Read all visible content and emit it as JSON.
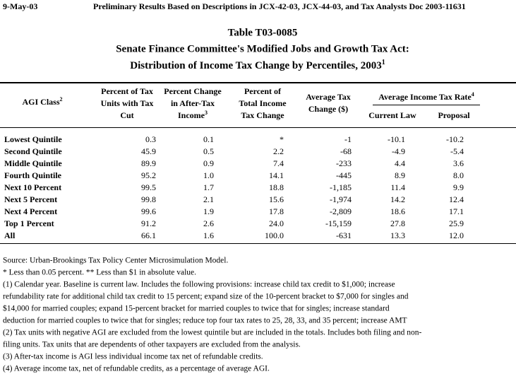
{
  "header": {
    "date": "9-May-03",
    "note": "Preliminary Results Based on Descriptions in JCX-42-03, JCX-44-03, and Tax Analysts Doc 2003-11631"
  },
  "title": {
    "lines": [
      "Table T03-0085",
      "Senate Finance Committee's Modified Jobs and Growth Tax Act:",
      "Distribution of Income Tax Change by Percentiles, 2003"
    ],
    "superscript": "1"
  },
  "table": {
    "columns": [
      {
        "lines": [
          "AGI Class"
        ],
        "superscript": "2"
      },
      {
        "lines": [
          "Percent of Tax",
          "Units with Tax",
          "Cut"
        ]
      },
      {
        "lines": [
          "Percent Change",
          "in After-Tax",
          "Income"
        ],
        "superscript": "3"
      },
      {
        "lines": [
          "Percent of",
          "Total Income",
          "Tax Change"
        ]
      },
      {
        "lines": [
          "Average Tax",
          "Change ($)"
        ]
      }
    ],
    "group": {
      "label": "Average Income Tax Rate",
      "superscript": "4",
      "columns": [
        "Current Law",
        "Proposal"
      ]
    },
    "rows": [
      {
        "label": "Lowest Quintile",
        "values": [
          "0.3",
          "0.1",
          "*",
          "-1",
          "-10.1",
          "-10.2"
        ]
      },
      {
        "label": "Second Quintile",
        "values": [
          "45.9",
          "0.5",
          "2.2",
          "-68",
          "-4.9",
          "-5.4"
        ]
      },
      {
        "label": "Middle Quintile",
        "values": [
          "89.9",
          "0.9",
          "7.4",
          "-233",
          "4.4",
          "3.6"
        ]
      },
      {
        "label": "Fourth Quintile",
        "values": [
          "95.2",
          "1.0",
          "14.1",
          "-445",
          "8.9",
          "8.0"
        ]
      },
      {
        "label": "Next 10 Percent",
        "values": [
          "99.5",
          "1.7",
          "18.8",
          "-1,185",
          "11.4",
          "9.9"
        ]
      },
      {
        "label": "Next 5 Percent",
        "values": [
          "99.8",
          "2.1",
          "15.6",
          "-1,974",
          "14.2",
          "12.4"
        ]
      },
      {
        "label": "Next 4 Percent",
        "values": [
          "99.6",
          "1.9",
          "17.8",
          "-2,809",
          "18.6",
          "17.1"
        ]
      },
      {
        "label": "Top 1 Percent",
        "values": [
          "91.2",
          "2.6",
          "24.0",
          "-15,159",
          "27.8",
          "25.9"
        ]
      },
      {
        "label": "All",
        "values": [
          "66.1",
          "1.6",
          "100.0",
          "-631",
          "13.3",
          "12.0"
        ]
      }
    ]
  },
  "footnotes": [
    "Source: Urban-Brookings Tax Policy Center Microsimulation Model.",
    "* Less than 0.05 percent.  ** Less than $1 in absolute value.",
    "(1) Calendar year. Baseline is current law. Includes the following provisions: increase child tax credit to $1,000; increase",
    "refundability rate for additional child tax credit to 15 percent; expand size of the 10-percent bracket to $7,000 for singles and",
    "$14,000 for married couples; expand 15-percent bracket for married couples to twice that for singles; increase standard",
    "deduction for married couples to twice that for singles; reduce top four tax rates to 25, 28, 33, and 35 percent; increase AMT",
    "(2) Tax units with negative AGI are excluded from the lowest quintile but are included in the totals. Includes both filing and non-",
    "filing units. Tax units that are dependents of other taxpayers are excluded from the analysis.",
    "(3) After-tax income is AGI less individual income tax net of refundable credits.",
    "(4) Average income tax, net of refundable credits, as a percentage of average AGI."
  ]
}
